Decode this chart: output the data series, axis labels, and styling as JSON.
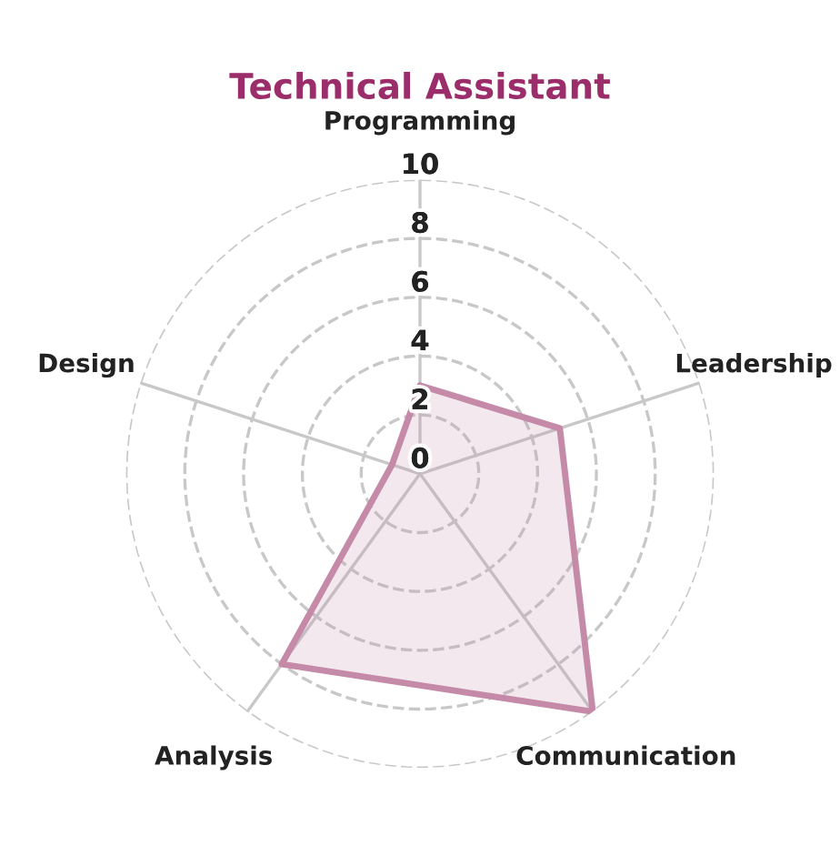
{
  "chart_data": {
    "type": "radar",
    "title": "Technical Assistant",
    "categories": [
      "Programming",
      "Leadership",
      "Communication",
      "Analysis",
      "Design"
    ],
    "series": [
      {
        "color": "#c48aa8",
        "values": [
          3,
          5,
          10,
          8,
          1
        ]
      }
    ],
    "ylim": [
      0,
      10
    ],
    "yticks": [
      0,
      2,
      4,
      6,
      8,
      10
    ],
    "grid": true
  }
}
